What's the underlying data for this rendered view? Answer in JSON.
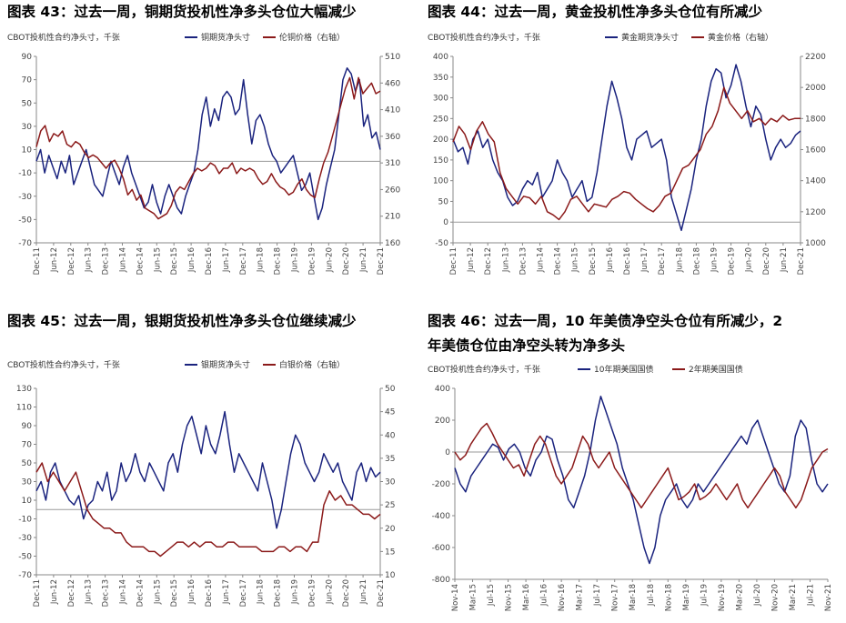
{
  "panels": [
    {
      "title": "图表 43：过去一周，铜期货投机性净多头仓位大幅减少",
      "unit_label": "CBOT投机性合约净头寸，千张",
      "legend": [
        "铜期货净头寸",
        "伦铜价格（右轴）"
      ]
    },
    {
      "title": "图表 44：过去一周，黄金投机性净多头仓位有所减少",
      "unit_label": "CBOT投机性合约净头寸，千张",
      "legend": [
        "黄金期货净头寸",
        "黄金价格（右轴）"
      ]
    },
    {
      "title": "图表 45：过去一周，银期货投机性净多头仓位继续减少",
      "unit_label": "CBOT投机性合约净头寸，千张",
      "legend": [
        "银期货净头寸",
        "白银价格（右轴）"
      ]
    },
    {
      "title_lines": [
        "图表 46：过去一周，10 年美债净空头仓位有所减少，2",
        "年美债仓位由净空头转为净多头"
      ],
      "unit_label": "CBOT投机性合约净头寸，千张",
      "legend": [
        "10年期美国国债",
        "2年期美国国债"
      ]
    }
  ],
  "chart_data": [
    {
      "type": "line",
      "colors": {
        "blue": "#1a237e",
        "red": "#8b1a1a"
      },
      "x_ticks": [
        "Dec-11",
        "Jun-12",
        "Dec-12",
        "Jun-13",
        "Dec-13",
        "Jun-14",
        "Dec-14",
        "Jun-15",
        "Dec-15",
        "Jun-16",
        "Dec-16",
        "Jun-17",
        "Dec-17",
        "Jun-18",
        "Dec-18",
        "Jun-19",
        "Dec-19",
        "Jun-20",
        "Dec-20",
        "Jun-21",
        "Dec-21"
      ],
      "y_left": {
        "min": -70,
        "max": 90,
        "ticks": [
          -70,
          -50,
          -30,
          -10,
          10,
          30,
          50,
          70,
          90
        ]
      },
      "y_right": {
        "min": 160,
        "max": 510,
        "ticks": [
          160,
          210,
          260,
          310,
          360,
          410,
          460,
          510
        ]
      },
      "zero_line": 0,
      "series": [
        {
          "name": "铜期货净头寸",
          "axis": "left",
          "color": "blue",
          "values": [
            0,
            10,
            -10,
            5,
            -5,
            -15,
            0,
            -10,
            5,
            -20,
            -10,
            0,
            10,
            -5,
            -20,
            -25,
            -30,
            -15,
            0,
            -10,
            -20,
            -5,
            5,
            -10,
            -20,
            -30,
            -40,
            -35,
            -20,
            -35,
            -45,
            -30,
            -20,
            -30,
            -40,
            -45,
            -30,
            -20,
            -10,
            10,
            40,
            55,
            30,
            45,
            35,
            55,
            60,
            55,
            40,
            45,
            70,
            40,
            15,
            35,
            40,
            30,
            15,
            5,
            0,
            -10,
            -5,
            0,
            5,
            -10,
            -25,
            -20,
            -10,
            -30,
            -50,
            -40,
            -20,
            -5,
            10,
            40,
            70,
            80,
            75,
            60,
            70,
            30,
            40,
            20,
            25,
            10
          ]
        },
        {
          "name": "伦铜价格（右轴）",
          "axis": "right",
          "color": "red",
          "values": [
            340,
            370,
            380,
            350,
            365,
            360,
            370,
            345,
            340,
            350,
            345,
            330,
            320,
            325,
            320,
            310,
            300,
            310,
            315,
            300,
            280,
            250,
            260,
            240,
            250,
            225,
            220,
            215,
            205,
            210,
            215,
            230,
            255,
            265,
            260,
            275,
            290,
            300,
            295,
            300,
            310,
            305,
            290,
            300,
            300,
            310,
            290,
            300,
            295,
            300,
            295,
            280,
            270,
            275,
            290,
            275,
            265,
            260,
            250,
            255,
            270,
            280,
            260,
            250,
            245,
            280,
            310,
            330,
            360,
            390,
            420,
            450,
            470,
            430,
            470,
            440,
            450,
            460,
            440,
            445
          ]
        }
      ]
    },
    {
      "type": "line",
      "colors": {
        "blue": "#1a237e",
        "red": "#8b1a1a"
      },
      "x_ticks": [
        "Dec-11",
        "Jun-12",
        "Dec-12",
        "Jun-13",
        "Dec-13",
        "Jun-14",
        "Dec-14",
        "Jun-15",
        "Dec-15",
        "Jun-16",
        "Dec-16",
        "Jun-17",
        "Dec-17",
        "Jun-18",
        "Dec-18",
        "Jun-19",
        "Dec-19",
        "Jun-20",
        "Dec-20",
        "Jun-21",
        "Dec-21"
      ],
      "y_left": {
        "min": -50,
        "max": 400,
        "ticks": [
          -50,
          0,
          50,
          100,
          150,
          200,
          250,
          300,
          350,
          400
        ]
      },
      "y_right": {
        "min": 1000,
        "max": 2200,
        "ticks": [
          1000,
          1200,
          1400,
          1600,
          1800,
          2000,
          2200
        ]
      },
      "zero_line": 0,
      "series": [
        {
          "name": "黄金期货净头寸",
          "axis": "left",
          "color": "blue",
          "values": [
            200,
            170,
            180,
            140,
            200,
            220,
            180,
            200,
            150,
            120,
            100,
            60,
            40,
            50,
            80,
            100,
            90,
            120,
            60,
            80,
            100,
            150,
            120,
            100,
            60,
            80,
            100,
            50,
            60,
            120,
            200,
            280,
            340,
            300,
            250,
            180,
            150,
            200,
            210,
            220,
            180,
            190,
            200,
            150,
            60,
            20,
            -20,
            30,
            80,
            150,
            200,
            280,
            340,
            370,
            360,
            300,
            330,
            380,
            340,
            280,
            230,
            280,
            260,
            200,
            150,
            180,
            200,
            180,
            190,
            210,
            220
          ]
        },
        {
          "name": "黄金价格（右轴）",
          "axis": "right",
          "color": "red",
          "values": [
            1650,
            1750,
            1700,
            1600,
            1720,
            1780,
            1700,
            1650,
            1450,
            1350,
            1300,
            1250,
            1300,
            1290,
            1250,
            1300,
            1200,
            1180,
            1150,
            1200,
            1280,
            1300,
            1250,
            1200,
            1250,
            1240,
            1230,
            1280,
            1300,
            1330,
            1320,
            1280,
            1250,
            1220,
            1200,
            1240,
            1300,
            1320,
            1400,
            1480,
            1500,
            1550,
            1600,
            1700,
            1750,
            1850,
            2000,
            1900,
            1850,
            1800,
            1850,
            1780,
            1800,
            1760,
            1800,
            1780,
            1820,
            1790,
            1800,
            1800
          ]
        }
      ]
    },
    {
      "type": "line",
      "colors": {
        "blue": "#1a237e",
        "red": "#8b1a1a"
      },
      "x_ticks": [
        "Dec-11",
        "Jun-12",
        "Dec-12",
        "Jun-13",
        "Dec-13",
        "Jun-14",
        "Dec-14",
        "Jun-15",
        "Dec-15",
        "Jun-16",
        "Dec-16",
        "Jun-17",
        "Dec-17",
        "Jun-18",
        "Dec-18",
        "Jun-19",
        "Dec-19",
        "Jun-20",
        "Dec-20",
        "Jun-21",
        "Dec-21"
      ],
      "y_left": {
        "min": -70,
        "max": 130,
        "ticks": [
          -70,
          -50,
          -30,
          -10,
          10,
          30,
          50,
          70,
          90,
          110,
          130
        ]
      },
      "y_right": {
        "min": 10,
        "max": 50,
        "ticks": [
          10,
          15,
          20,
          25,
          30,
          35,
          40,
          45,
          50
        ]
      },
      "zero_line": 0,
      "series": [
        {
          "name": "银期货净头寸",
          "axis": "left",
          "color": "blue",
          "values": [
            20,
            30,
            10,
            40,
            50,
            30,
            20,
            10,
            5,
            15,
            -10,
            5,
            10,
            30,
            20,
            40,
            10,
            20,
            50,
            30,
            40,
            60,
            40,
            30,
            50,
            40,
            30,
            20,
            50,
            60,
            40,
            70,
            90,
            100,
            80,
            60,
            90,
            70,
            60,
            80,
            105,
            70,
            40,
            60,
            50,
            40,
            30,
            20,
            50,
            30,
            10,
            -20,
            0,
            30,
            60,
            80,
            70,
            50,
            40,
            30,
            40,
            60,
            50,
            40,
            50,
            30,
            20,
            10,
            40,
            50,
            30,
            45,
            35,
            40
          ]
        },
        {
          "name": "白银价格（右轴）",
          "axis": "right",
          "color": "red",
          "values": [
            32,
            34,
            30,
            32,
            30,
            28,
            30,
            32,
            28,
            24,
            22,
            21,
            20,
            20,
            19,
            19,
            17,
            16,
            16,
            16,
            15,
            15,
            14,
            15,
            16,
            17,
            17,
            16,
            17,
            16,
            17,
            17,
            16,
            16,
            17,
            17,
            16,
            16,
            16,
            16,
            15,
            15,
            15,
            16,
            16,
            15,
            16,
            16,
            15,
            17,
            17,
            25,
            28,
            26,
            27,
            25,
            25,
            24,
            23,
            23,
            22,
            23
          ]
        }
      ]
    },
    {
      "type": "line",
      "colors": {
        "blue": "#1a237e",
        "red": "#8b1a1a"
      },
      "x_ticks": [
        "Nov-14",
        "Mar-15",
        "Jul-15",
        "Nov-15",
        "Mar-16",
        "Jul-16",
        "Nov-16",
        "Mar-17",
        "Jul-17",
        "Nov-17",
        "Mar-18",
        "Jul-18",
        "Nov-18",
        "Mar-19",
        "Jul-19",
        "Nov-19",
        "Mar-20",
        "Jul-20",
        "Nov-20",
        "Mar-21",
        "Jul-21",
        "Nov-21"
      ],
      "y_left": {
        "min": -800,
        "max": 400,
        "ticks": [
          -800,
          -600,
          -400,
          -200,
          0,
          200,
          400
        ]
      },
      "zero_line": 0,
      "series": [
        {
          "name": "10年期美国国债",
          "axis": "left",
          "color": "blue",
          "values": [
            -100,
            -200,
            -250,
            -150,
            -100,
            -50,
            0,
            50,
            30,
            -50,
            20,
            50,
            0,
            -100,
            -150,
            -50,
            0,
            100,
            80,
            -50,
            -150,
            -300,
            -350,
            -250,
            -150,
            0,
            200,
            350,
            250,
            150,
            50,
            -100,
            -200,
            -300,
            -450,
            -600,
            -700,
            -600,
            -400,
            -300,
            -250,
            -200,
            -300,
            -350,
            -300,
            -200,
            -250,
            -200,
            -150,
            -100,
            -50,
            0,
            50,
            100,
            50,
            150,
            200,
            100,
            0,
            -100,
            -200,
            -250,
            -150,
            100,
            200,
            150,
            -50,
            -200,
            -250,
            -200
          ]
        },
        {
          "name": "2年期美国国债",
          "axis": "left",
          "color": "red",
          "values": [
            0,
            -50,
            -20,
            50,
            100,
            150,
            180,
            120,
            50,
            0,
            -50,
            -100,
            -80,
            -150,
            -50,
            50,
            100,
            50,
            -50,
            -150,
            -200,
            -150,
            -100,
            0,
            100,
            50,
            -50,
            -100,
            -50,
            0,
            -100,
            -150,
            -200,
            -250,
            -300,
            -350,
            -300,
            -250,
            -200,
            -150,
            -100,
            -200,
            -300,
            -280,
            -250,
            -200,
            -300,
            -280,
            -250,
            -200,
            -250,
            -300,
            -250,
            -200,
            -300,
            -350,
            -300,
            -250,
            -200,
            -150,
            -100,
            -150,
            -250,
            -300,
            -350,
            -300,
            -200,
            -100,
            -50,
            0,
            20
          ]
        }
      ]
    }
  ]
}
